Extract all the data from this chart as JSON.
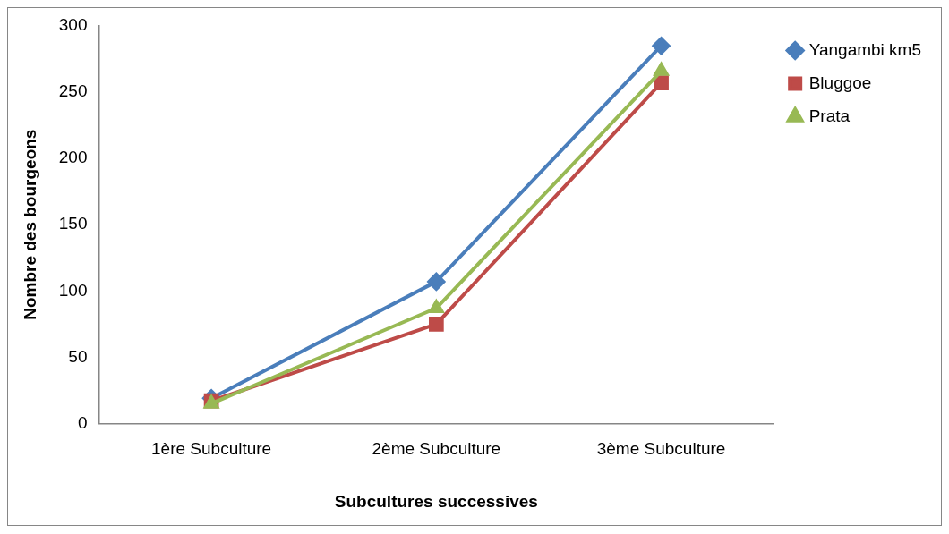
{
  "chart_data": {
    "type": "line",
    "xlabel": "Subcultures successives",
    "ylabel": "Nombre des bourgeons",
    "categories": [
      "1ère Subculture",
      "2ème Subculture",
      "3ème Subculture"
    ],
    "series": [
      {
        "name": "Yangambi km5",
        "color": "#4a7ebb",
        "marker": "diamond",
        "values": [
          19,
          107,
          285
        ]
      },
      {
        "name": "Bluggoe",
        "color": "#be4b48",
        "marker": "square",
        "values": [
          17,
          75,
          257
        ]
      },
      {
        "name": "Prata",
        "color": "#98b954",
        "marker": "triangle",
        "values": [
          15,
          87,
          266
        ]
      }
    ],
    "ylim": [
      0,
      300
    ],
    "yticks": [
      0,
      50,
      100,
      150,
      200,
      250,
      300
    ],
    "grid": false,
    "legend": "right"
  }
}
